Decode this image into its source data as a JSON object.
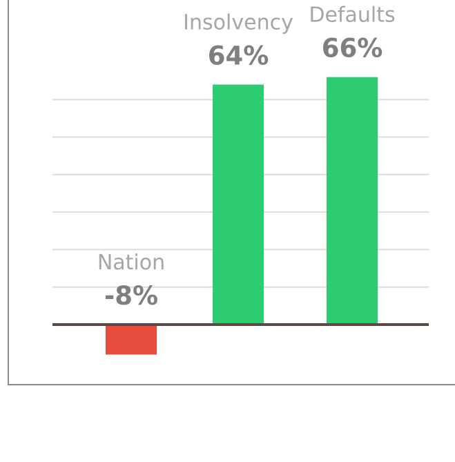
{
  "chart_data": {
    "type": "bar",
    "categories": [
      "Nation",
      "Insolvency",
      "Defaults"
    ],
    "values": [
      -8,
      64,
      66
    ],
    "value_labels": [
      "-8%",
      "64%",
      "66%"
    ],
    "unit": "%",
    "ylim": [
      -15,
      60
    ],
    "grid": true,
    "legend": "none",
    "colors": {
      "positive": "#2ecc71",
      "negative": "#e74c3c",
      "grid": "#dcdcdc",
      "baseline": "#5a4a42",
      "frame": "#8a8a8a"
    }
  }
}
